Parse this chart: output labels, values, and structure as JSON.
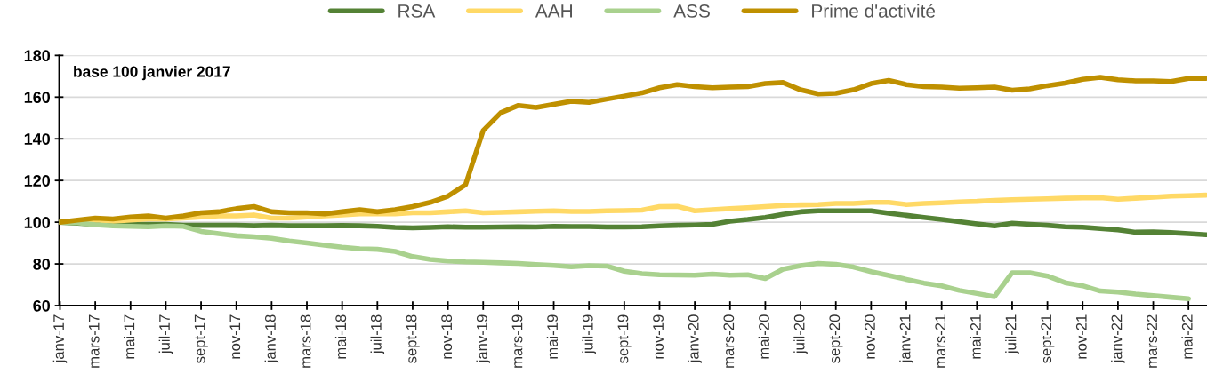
{
  "chart_data": {
    "type": "line",
    "categories": [
      "janv-17",
      null,
      "mars-17",
      null,
      "mai-17",
      null,
      "juil-17",
      null,
      "sept-17",
      null,
      "nov-17",
      null,
      "janv-18",
      null,
      "mars-18",
      null,
      "mai-18",
      null,
      "juil-18",
      null,
      "sept-18",
      null,
      "nov-18",
      null,
      "janv-19",
      null,
      "mars-19",
      null,
      "mai-19",
      null,
      "juil-19",
      null,
      "sept-19",
      null,
      "nov-19",
      null,
      "janv-20",
      null,
      "mars-20",
      null,
      "mai-20",
      null,
      "juil-20",
      null,
      "sept-20",
      null,
      "nov-20",
      null,
      "janv-21",
      null,
      "mars-21",
      null,
      "mai-21",
      null,
      "juil-21",
      null,
      "sept-21",
      null,
      "nov-21",
      null,
      "janv-22",
      null,
      "mars-22",
      null,
      "mai-22",
      null
    ],
    "series": [
      {
        "name": "RSA",
        "color": "#548235",
        "values": [
          100,
          99.5,
          99,
          99,
          99,
          99,
          99,
          98.5,
          98.5,
          98.5,
          98.5,
          98.3,
          98.5,
          98.3,
          98.3,
          98.3,
          98.4,
          98.3,
          98,
          97.5,
          97.3,
          97.5,
          97.8,
          97.6,
          97.6,
          97.7,
          97.8,
          97.7,
          98,
          97.9,
          97.9,
          97.7,
          97.7,
          97.8,
          98.2,
          98.5,
          98.7,
          99,
          100.5,
          101.3,
          102.3,
          103.8,
          105,
          105.5,
          105.5,
          105.5,
          105.5,
          104.3,
          103.3,
          102.3,
          101.3,
          100.3,
          99.2,
          98.2,
          99.5,
          99,
          98.5,
          97.8,
          97.6,
          97,
          96.3,
          95.2,
          95.3,
          95,
          94.5,
          94
        ]
      },
      {
        "name": "AAH",
        "color": "#ffd966",
        "values": [
          100,
          100.5,
          101,
          100.5,
          101,
          101.5,
          101.5,
          102,
          102.5,
          103,
          103,
          103.5,
          102,
          102,
          102.5,
          103,
          103.5,
          104,
          104,
          104,
          104.5,
          104.5,
          105,
          105.5,
          104.5,
          104.7,
          105,
          105.3,
          105.5,
          105.2,
          105.2,
          105.5,
          105.6,
          105.8,
          107.5,
          107.6,
          105.5,
          106,
          106.5,
          107,
          107.5,
          108,
          108.3,
          108.5,
          109,
          109,
          109.5,
          109.5,
          108.5,
          109,
          109.3,
          109.7,
          110,
          110.5,
          110.8,
          111,
          111.2,
          111.5,
          111.7,
          111.8,
          111,
          111.5,
          112,
          112.5,
          112.7,
          113
        ]
      },
      {
        "name": "ASS",
        "color": "#a9d18e",
        "values": [
          100,
          99.7,
          98.8,
          98.2,
          98,
          97.8,
          98.2,
          98,
          95.6,
          94.5,
          93.5,
          93,
          92.3,
          91,
          90,
          89,
          88,
          87.3,
          87,
          86,
          83.5,
          82.2,
          81.4,
          81,
          80.8,
          80.5,
          80.2,
          79.7,
          79.3,
          78.6,
          79.2,
          79,
          76.5,
          75.3,
          74.8,
          74.7,
          74.6,
          75.1,
          74.6,
          74.8,
          73,
          77.5,
          79.2,
          80.2,
          79.8,
          78.5,
          76.3,
          74.5,
          72.6,
          70.8,
          69.5,
          67.3,
          65.8,
          64.3,
          75.8,
          75.8,
          74.2,
          71,
          69.5,
          67,
          66.5,
          65.5,
          64.8,
          64,
          63.3,
          null
        ]
      },
      {
        "name": "Prime d'activité",
        "color": "#bf9000",
        "values": [
          100,
          101,
          102,
          101.5,
          102.5,
          103,
          102,
          103,
          104.5,
          105,
          106.5,
          107.5,
          105,
          104.5,
          104.5,
          104,
          105,
          106,
          105,
          106,
          107.5,
          109.5,
          112.5,
          118,
          144,
          152.5,
          156,
          155,
          156.5,
          158,
          157.5,
          159,
          160.5,
          162,
          164.5,
          166,
          165,
          164.5,
          164.8,
          165,
          166.5,
          167,
          163.5,
          161.5,
          161.8,
          163.5,
          166.5,
          168,
          166,
          165,
          164.8,
          164.3,
          164.5,
          164.8,
          163.3,
          164,
          165.5,
          166.7,
          168.5,
          169.5,
          168.3,
          167.8,
          167.8,
          167.5,
          169,
          169
        ]
      }
    ],
    "ylim": [
      60,
      180
    ],
    "yticks": [
      60,
      80,
      100,
      120,
      140,
      160,
      180
    ],
    "grid": "y",
    "legend": "top",
    "marker": "none",
    "line_style": "solid",
    "annotations": [
      "base 100 janvier 2017"
    ]
  }
}
